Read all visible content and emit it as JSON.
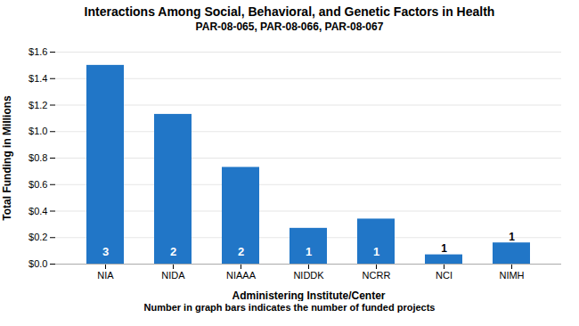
{
  "chart_data": {
    "type": "bar",
    "title": "Interactions Among Social, Behavioral, and Genetic Factors in Health",
    "subtitle": "PAR-08-065, PAR-08-066, PAR-08-067",
    "xlabel": "Administering Institute/Center",
    "ylabel": "Total Funding in Millions",
    "footnote": "Number in graph bars indicates the number of funded projects",
    "categories": [
      "NIA",
      "NIDA",
      "NIAAA",
      "NIDDK",
      "NCRR",
      "NCI",
      "NIMH"
    ],
    "values": [
      1.5,
      1.13,
      0.73,
      0.27,
      0.34,
      0.07,
      0.16
    ],
    "projects": [
      3,
      2,
      2,
      1,
      1,
      1,
      1
    ],
    "color": "#2176C7",
    "ylim": [
      0,
      1.6
    ],
    "yticks": [
      {
        "value": 0.0,
        "label": "$0.0"
      },
      {
        "value": 0.2,
        "label": "$0.2"
      },
      {
        "value": 0.4,
        "label": "$0.4"
      },
      {
        "value": 0.6,
        "label": "$0.6"
      },
      {
        "value": 0.8,
        "label": "$0.8"
      },
      {
        "value": 1.0,
        "label": "$1.0"
      },
      {
        "value": 1.2,
        "label": "$1.2"
      },
      {
        "value": 1.4,
        "label": "$1.4"
      },
      {
        "value": 1.6,
        "label": "$1.6"
      }
    ],
    "grid": true
  }
}
